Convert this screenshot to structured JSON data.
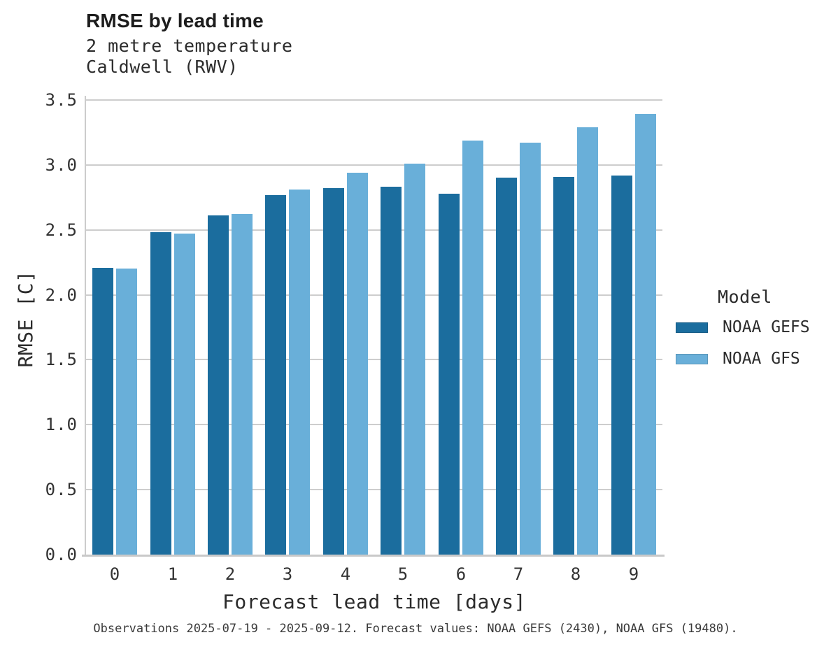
{
  "header": {
    "title": "RMSE by lead time",
    "subtitle_line1": "2 metre temperature",
    "subtitle_line2": "Caldwell (RWV)"
  },
  "chart_data": {
    "type": "bar",
    "title": "RMSE by lead time",
    "subtitle": [
      "2 metre temperature",
      "Caldwell (RWV)"
    ],
    "categories": [
      "0",
      "1",
      "2",
      "3",
      "4",
      "5",
      "6",
      "7",
      "8",
      "9"
    ],
    "series": [
      {
        "name": "NOAA GEFS",
        "color": "#1b6d9e",
        "values": [
          2.21,
          2.48,
          2.61,
          2.77,
          2.82,
          2.83,
          2.78,
          2.9,
          2.91,
          2.92
        ]
      },
      {
        "name": "NOAA GFS",
        "color": "#69afd9",
        "values": [
          2.2,
          2.47,
          2.62,
          2.81,
          2.94,
          3.01,
          3.19,
          3.17,
          3.29,
          3.39
        ]
      }
    ],
    "xlabel": "Forecast lead time [days]",
    "ylabel": "RMSE [C]",
    "ylim": [
      0,
      3.5
    ],
    "yticks": [
      "0.0",
      "0.5",
      "1.0",
      "1.5",
      "2.0",
      "2.5",
      "3.0",
      "3.5"
    ],
    "grid": true,
    "legend_title": "Model",
    "legend_position": "right"
  },
  "legend": {
    "title": "Model",
    "items": [
      {
        "label": "NOAA GEFS"
      },
      {
        "label": "NOAA GFS"
      }
    ]
  },
  "footer": {
    "note": "Observations 2025-07-19 - 2025-09-12. Forecast values: NOAA GEFS (2430), NOAA GFS (19480)."
  },
  "colors": {
    "grid": "#cdcdcd",
    "spine": "#cccccc",
    "title_text": "#1c1c1c",
    "tick_text": "#333333",
    "footer_text": "#3a3a3a"
  }
}
